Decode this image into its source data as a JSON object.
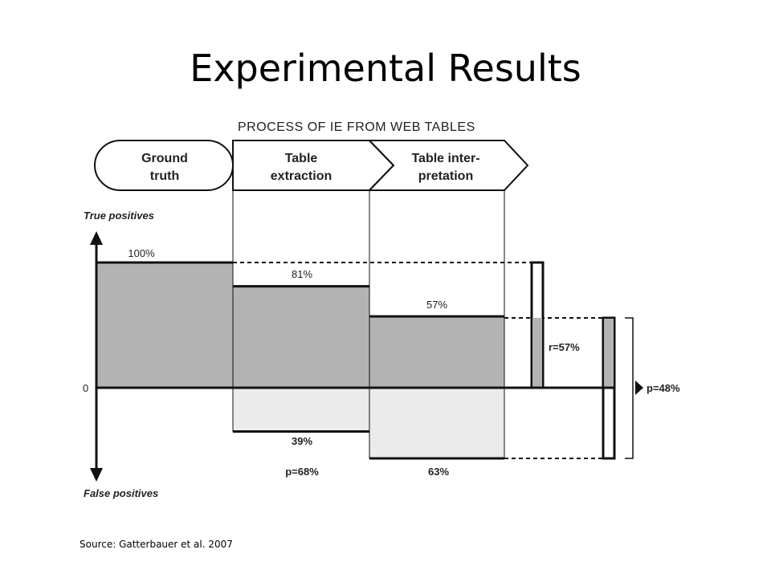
{
  "slide": {
    "title": "Experimental Results",
    "source": "Source: Gatterbauer et al. 2007"
  },
  "diagram": {
    "header": "PROCESS OF IE FROM WEB TABLES",
    "stages": [
      {
        "line1": "Ground",
        "line2": "truth"
      },
      {
        "line1": "Table",
        "line2": "extraction"
      },
      {
        "line1": "Table inter-",
        "line2": "pretation"
      }
    ],
    "axis": {
      "top_label": "True positives",
      "bottom_label": "False positives",
      "zero_label": "0"
    },
    "labels": {
      "true_positive_ground": "100%",
      "true_positive_extraction": "81%",
      "true_positive_interpretation": "57%",
      "false_positive_extraction": "39%",
      "false_positive_interpretation": "63%",
      "precision_extraction": "p=68%",
      "recall_final": "r=57%",
      "precision_final": "p=48%"
    },
    "values": {
      "true_positive": [
        100,
        81,
        57
      ],
      "false_positive": [
        0,
        39,
        63
      ]
    },
    "colors": {
      "true_positive_fill": "#b3b3b3",
      "false_positive_fill": "#ebebeb",
      "stroke": "#111111"
    }
  }
}
